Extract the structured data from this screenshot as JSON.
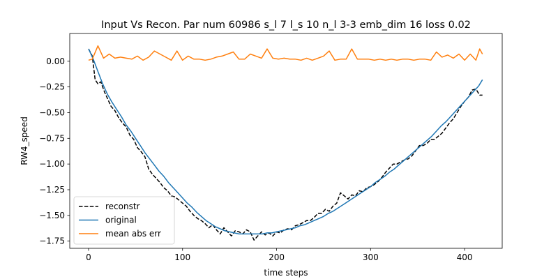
{
  "chart_data": {
    "type": "line",
    "title": "Input Vs Recon. Par num 60986 s_l 7 l_s 10 n_l 3-3 emb_dim 16 loss 0.02",
    "xlabel": "time steps",
    "ylabel": "RW4_speed",
    "xlim": [
      -20,
      440
    ],
    "ylim": [
      -1.82,
      0.27
    ],
    "xticks": [
      0,
      100,
      200,
      300,
      400
    ],
    "xtick_labels": [
      "0",
      "100",
      "200",
      "300",
      "400"
    ],
    "yticks": [
      0.0,
      -0.25,
      -0.5,
      -0.75,
      -1.0,
      -1.25,
      -1.5,
      -1.75
    ],
    "ytick_labels": [
      "0.00",
      "−0.25",
      "−0.50",
      "−0.75",
      "−1.00",
      "−1.25",
      "−1.50",
      "−1.75"
    ],
    "grid": false,
    "legend_position": "lower-left",
    "series": [
      {
        "name": "reconstr",
        "color": "#000000",
        "dash": "dashed",
        "x": [
          0,
          4,
          7,
          10,
          13,
          17,
          20,
          24,
          28,
          32,
          36,
          40,
          44,
          48,
          52,
          56,
          60,
          64,
          68,
          72,
          76,
          80,
          84,
          88,
          92,
          96,
          100,
          104,
          108,
          112,
          116,
          120,
          124,
          128,
          132,
          136,
          140,
          144,
          148,
          152,
          156,
          160,
          164,
          168,
          172,
          176,
          180,
          184,
          188,
          192,
          196,
          200,
          204,
          208,
          212,
          216,
          220,
          224,
          228,
          232,
          236,
          240,
          244,
          248,
          252,
          256,
          260,
          264,
          268,
          272,
          276,
          280,
          284,
          288,
          292,
          296,
          300,
          304,
          308,
          312,
          316,
          320,
          324,
          328,
          332,
          336,
          340,
          344,
          348,
          352,
          356,
          360,
          364,
          368,
          372,
          376,
          380,
          384,
          388,
          392,
          396,
          400,
          404,
          408,
          412,
          416,
          419
        ],
        "y": [
          0.12,
          0.05,
          -0.18,
          -0.22,
          -0.2,
          -0.3,
          -0.36,
          -0.44,
          -0.48,
          -0.55,
          -0.6,
          -0.64,
          -0.72,
          -0.76,
          -0.84,
          -0.88,
          -0.93,
          -1.05,
          -1.1,
          -1.14,
          -1.18,
          -1.23,
          -1.26,
          -1.31,
          -1.32,
          -1.35,
          -1.38,
          -1.41,
          -1.46,
          -1.5,
          -1.53,
          -1.55,
          -1.58,
          -1.62,
          -1.59,
          -1.64,
          -1.68,
          -1.62,
          -1.66,
          -1.7,
          -1.65,
          -1.66,
          -1.68,
          -1.64,
          -1.66,
          -1.74,
          -1.7,
          -1.66,
          -1.69,
          -1.67,
          -1.7,
          -1.66,
          -1.67,
          -1.64,
          -1.63,
          -1.64,
          -1.6,
          -1.59,
          -1.57,
          -1.55,
          -1.55,
          -1.52,
          -1.48,
          -1.48,
          -1.44,
          -1.46,
          -1.41,
          -1.38,
          -1.28,
          -1.31,
          -1.34,
          -1.3,
          -1.31,
          -1.26,
          -1.27,
          -1.23,
          -1.22,
          -1.2,
          -1.17,
          -1.13,
          -1.08,
          -1.04,
          -1.0,
          -1.0,
          -0.98,
          -0.96,
          -0.95,
          -0.92,
          -0.87,
          -0.82,
          -0.82,
          -0.8,
          -0.76,
          -0.76,
          -0.73,
          -0.7,
          -0.65,
          -0.6,
          -0.56,
          -0.5,
          -0.44,
          -0.39,
          -0.35,
          -0.28,
          -0.27,
          -0.33,
          -0.33
        ]
      },
      {
        "name": "original",
        "color": "#1f77b4",
        "dash": "solid",
        "x": [
          0,
          5,
          10,
          15,
          20,
          25,
          30,
          35,
          40,
          45,
          50,
          55,
          60,
          65,
          70,
          75,
          80,
          85,
          90,
          95,
          100,
          105,
          110,
          115,
          120,
          125,
          130,
          135,
          140,
          145,
          150,
          155,
          160,
          165,
          170,
          175,
          180,
          185,
          190,
          195,
          200,
          205,
          210,
          215,
          220,
          225,
          230,
          235,
          240,
          245,
          250,
          255,
          260,
          265,
          270,
          275,
          280,
          285,
          290,
          295,
          300,
          305,
          310,
          315,
          320,
          325,
          330,
          335,
          340,
          345,
          350,
          355,
          360,
          365,
          370,
          375,
          380,
          385,
          390,
          395,
          400,
          405,
          410,
          415,
          419
        ],
        "y": [
          0.12,
          0.02,
          -0.1,
          -0.22,
          -0.32,
          -0.4,
          -0.47,
          -0.54,
          -0.62,
          -0.68,
          -0.75,
          -0.82,
          -0.89,
          -0.95,
          -1.01,
          -1.07,
          -1.12,
          -1.18,
          -1.23,
          -1.28,
          -1.33,
          -1.38,
          -1.42,
          -1.47,
          -1.51,
          -1.55,
          -1.58,
          -1.61,
          -1.63,
          -1.65,
          -1.66,
          -1.67,
          -1.68,
          -1.68,
          -1.68,
          -1.68,
          -1.68,
          -1.68,
          -1.67,
          -1.67,
          -1.66,
          -1.65,
          -1.64,
          -1.63,
          -1.62,
          -1.6,
          -1.59,
          -1.57,
          -1.55,
          -1.53,
          -1.51,
          -1.48,
          -1.46,
          -1.43,
          -1.4,
          -1.37,
          -1.34,
          -1.31,
          -1.28,
          -1.25,
          -1.22,
          -1.18,
          -1.15,
          -1.12,
          -1.08,
          -1.05,
          -1.01,
          -0.97,
          -0.93,
          -0.89,
          -0.85,
          -0.81,
          -0.77,
          -0.73,
          -0.68,
          -0.63,
          -0.59,
          -0.54,
          -0.49,
          -0.44,
          -0.39,
          -0.34,
          -0.29,
          -0.24,
          -0.18
        ]
      },
      {
        "name": "mean abs err",
        "color": "#ff7f0e",
        "dash": "solid",
        "x": [
          0,
          4,
          10,
          16,
          22,
          28,
          34,
          40,
          46,
          52,
          58,
          64,
          70,
          76,
          82,
          88,
          94,
          100,
          106,
          112,
          118,
          124,
          130,
          136,
          142,
          148,
          154,
          160,
          166,
          172,
          178,
          184,
          190,
          196,
          202,
          208,
          214,
          220,
          226,
          232,
          238,
          244,
          250,
          256,
          262,
          268,
          274,
          280,
          286,
          292,
          298,
          304,
          310,
          316,
          322,
          328,
          334,
          340,
          346,
          352,
          358,
          364,
          370,
          376,
          382,
          388,
          394,
          400,
          406,
          412,
          416,
          419
        ],
        "y": [
          0.01,
          0.02,
          0.15,
          0.03,
          0.07,
          0.03,
          0.04,
          0.03,
          0.02,
          0.05,
          0.01,
          0.04,
          0.1,
          0.07,
          0.04,
          0.01,
          0.1,
          0.01,
          0.05,
          0.02,
          0.02,
          0.01,
          0.02,
          0.04,
          0.05,
          0.07,
          0.09,
          0.02,
          0.02,
          0.07,
          0.05,
          0.03,
          0.12,
          0.03,
          0.02,
          0.03,
          0.02,
          0.02,
          0.01,
          0.03,
          0.01,
          0.03,
          0.05,
          0.1,
          0.01,
          0.02,
          0.02,
          0.12,
          0.02,
          0.02,
          0.02,
          0.01,
          0.02,
          0.01,
          0.02,
          0.01,
          0.02,
          0.02,
          0.01,
          0.02,
          0.02,
          0.01,
          0.09,
          0.04,
          0.06,
          0.03,
          0.07,
          0.01,
          0.07,
          0.01,
          0.12,
          0.07
        ]
      }
    ]
  }
}
